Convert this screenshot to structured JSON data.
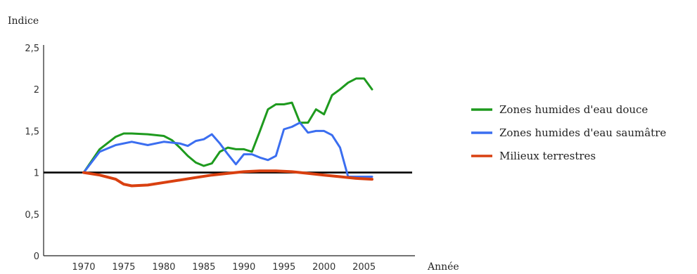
{
  "chart_data": {
    "type": "line",
    "ylabel": "Indice",
    "xlabel": "Année",
    "xlim": [
      1965,
      2011
    ],
    "ylim": [
      0,
      2.5
    ],
    "x_ticks": [
      1970,
      1975,
      1980,
      1985,
      1990,
      1995,
      2000,
      2005
    ],
    "x_tick_labels": [
      "1970",
      "1975",
      "1980",
      "1985",
      "1990",
      "1995",
      "2000",
      "2005"
    ],
    "y_ticks": [
      0,
      0.5,
      1,
      1.5,
      2,
      2.5
    ],
    "y_tick_labels": [
      "0",
      "0,5",
      "1",
      "1,5",
      "2",
      "2,5"
    ],
    "reference_line": 1,
    "grid": false,
    "legend_position": "right",
    "series": [
      {
        "name": "Zones humides d'eau douce",
        "color": "#1e9a1e",
        "x": [
          1970,
          1972,
          1974,
          1975,
          1976,
          1978,
          1980,
          1981,
          1982,
          1983,
          1984,
          1985,
          1986,
          1987,
          1988,
          1989,
          1990,
          1991,
          1992,
          1993,
          1994,
          1995,
          1996,
          1997,
          1998,
          1999,
          2000,
          2001,
          2002,
          2003,
          2004,
          2005,
          2006
        ],
        "values": [
          1.0,
          1.28,
          1.43,
          1.47,
          1.47,
          1.46,
          1.44,
          1.39,
          1.3,
          1.2,
          1.12,
          1.08,
          1.11,
          1.25,
          1.3,
          1.28,
          1.28,
          1.25,
          1.5,
          1.76,
          1.82,
          1.82,
          1.84,
          1.6,
          1.6,
          1.76,
          1.7,
          1.93,
          2.0,
          2.08,
          2.13,
          2.13,
          2.0
        ]
      },
      {
        "name": "Zones humides d'eau saumâtre",
        "color": "#3b6ef0",
        "x": [
          1970,
          1972,
          1974,
          1976,
          1978,
          1980,
          1982,
          1983,
          1984,
          1985,
          1986,
          1987,
          1988,
          1989,
          1990,
          1991,
          1992,
          1993,
          1994,
          1995,
          1996,
          1997,
          1998,
          1999,
          2000,
          2001,
          2002,
          2003,
          2004,
          2005,
          2006
        ],
        "values": [
          1.0,
          1.25,
          1.33,
          1.37,
          1.33,
          1.37,
          1.35,
          1.32,
          1.38,
          1.4,
          1.46,
          1.35,
          1.22,
          1.1,
          1.22,
          1.22,
          1.18,
          1.15,
          1.2,
          1.52,
          1.55,
          1.6,
          1.48,
          1.5,
          1.5,
          1.45,
          1.3,
          0.95,
          0.95,
          0.95,
          0.95
        ]
      },
      {
        "name": "Milieux terrestres",
        "color": "#d94010",
        "x": [
          1970,
          1972,
          1974,
          1975,
          1976,
          1978,
          1980,
          1982,
          1984,
          1986,
          1988,
          1990,
          1992,
          1994,
          1996,
          1998,
          2000,
          2002,
          2004,
          2006
        ],
        "values": [
          1.0,
          0.97,
          0.92,
          0.86,
          0.84,
          0.85,
          0.88,
          0.91,
          0.94,
          0.97,
          0.99,
          1.01,
          1.02,
          1.02,
          1.01,
          0.99,
          0.97,
          0.95,
          0.93,
          0.92
        ]
      }
    ]
  }
}
